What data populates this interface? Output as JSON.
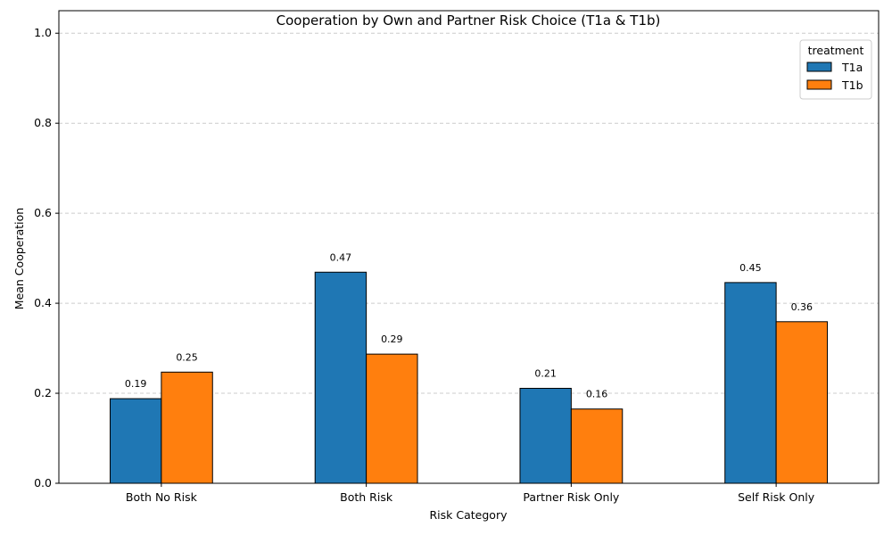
{
  "chart_data": {
    "type": "bar",
    "title": "Cooperation by Own and Partner Risk Choice (T1a & T1b)",
    "xlabel": "Risk Category",
    "ylabel": "Mean Cooperation",
    "categories": [
      "Both No Risk",
      "Both Risk",
      "Partner Risk Only",
      "Self Risk Only"
    ],
    "ylim": [
      0,
      1.05
    ],
    "yticks": [
      "0.0",
      "0.2",
      "0.4",
      "0.6",
      "0.8",
      "1.0"
    ],
    "grid": "y-dashed",
    "legend": {
      "title": "treatment",
      "placement": "top-right"
    },
    "series": [
      {
        "name": "T1a",
        "color": "#1f77b4",
        "values": [
          0.188,
          0.469,
          0.211,
          0.446
        ],
        "labels": [
          "0.19",
          "0.47",
          "0.21",
          "0.45"
        ]
      },
      {
        "name": "T1b",
        "color": "#ff7f0e",
        "values": [
          0.247,
          0.287,
          0.165,
          0.359
        ],
        "labels": [
          "0.25",
          "0.29",
          "0.16",
          "0.36"
        ]
      }
    ]
  }
}
